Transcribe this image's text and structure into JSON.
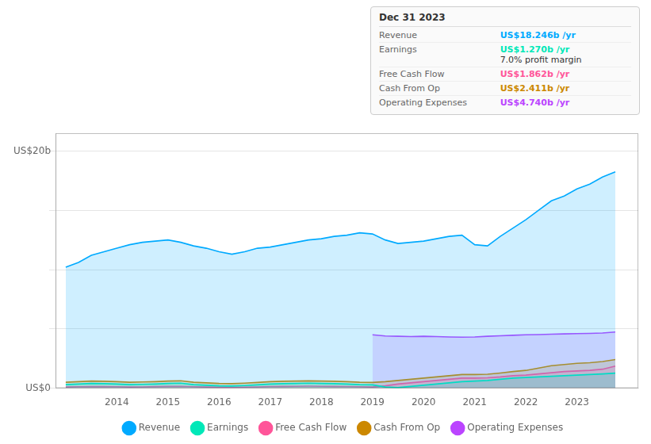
{
  "chart_data": {
    "type": "area",
    "x": [
      2013.0,
      2013.25,
      2013.5,
      2013.75,
      2014.0,
      2014.25,
      2014.5,
      2014.75,
      2015.0,
      2015.25,
      2015.5,
      2015.75,
      2016.0,
      2016.25,
      2016.5,
      2016.75,
      2017.0,
      2017.25,
      2017.5,
      2017.75,
      2018.0,
      2018.25,
      2018.5,
      2018.75,
      2019.0,
      2019.25,
      2019.5,
      2019.75,
      2020.0,
      2020.25,
      2020.5,
      2020.75,
      2021.0,
      2021.25,
      2021.5,
      2021.75,
      2022.0,
      2022.25,
      2022.5,
      2022.75,
      2023.0,
      2023.25,
      2023.5,
      2023.75
    ],
    "series": [
      {
        "name": "Revenue",
        "color": "#00aaff",
        "values": [
          10.2,
          10.6,
          11.2,
          11.5,
          11.8,
          12.1,
          12.3,
          12.4,
          12.5,
          12.3,
          12.0,
          11.8,
          11.5,
          11.3,
          11.5,
          11.8,
          11.9,
          12.1,
          12.3,
          12.5,
          12.6,
          12.8,
          12.9,
          13.1,
          13.0,
          12.5,
          12.2,
          12.3,
          12.4,
          12.6,
          12.8,
          12.9,
          12.1,
          12.0,
          12.8,
          13.5,
          14.2,
          15.0,
          15.8,
          16.2,
          16.8,
          17.2,
          17.8,
          18.246
        ]
      },
      {
        "name": "Earnings",
        "color": "#00e8b8",
        "values": [
          0.3,
          0.35,
          0.4,
          0.38,
          0.35,
          0.3,
          0.32,
          0.35,
          0.4,
          0.42,
          0.3,
          0.25,
          0.2,
          0.18,
          0.22,
          0.28,
          0.35,
          0.38,
          0.4,
          0.42,
          0.4,
          0.38,
          0.35,
          0.3,
          0.28,
          0.1,
          0.05,
          0.15,
          0.25,
          0.35,
          0.45,
          0.55,
          0.6,
          0.65,
          0.75,
          0.85,
          0.9,
          0.95,
          1.0,
          1.05,
          1.1,
          1.15,
          1.2,
          1.27
        ]
      },
      {
        "name": "Free Cash Flow",
        "color": "#ff5599",
        "values": [
          0.1,
          0.12,
          0.14,
          0.13,
          0.12,
          0.1,
          0.11,
          0.13,
          0.15,
          0.16,
          0.12,
          0.1,
          0.08,
          0.07,
          0.09,
          0.11,
          0.14,
          0.15,
          0.16,
          0.17,
          0.16,
          0.15,
          0.14,
          0.12,
          0.1,
          0.2,
          0.35,
          0.45,
          0.55,
          0.65,
          0.75,
          0.85,
          0.85,
          0.88,
          0.95,
          1.05,
          1.1,
          1.2,
          1.3,
          1.4,
          1.45,
          1.5,
          1.6,
          1.862
        ]
      },
      {
        "name": "Cash From Op",
        "color": "#cc8800",
        "values": [
          0.5,
          0.55,
          0.6,
          0.58,
          0.55,
          0.5,
          0.52,
          0.55,
          0.6,
          0.62,
          0.5,
          0.45,
          0.4,
          0.38,
          0.42,
          0.48,
          0.55,
          0.58,
          0.6,
          0.62,
          0.6,
          0.58,
          0.55,
          0.5,
          0.48,
          0.55,
          0.65,
          0.75,
          0.85,
          0.95,
          1.05,
          1.15,
          1.15,
          1.18,
          1.28,
          1.4,
          1.5,
          1.7,
          1.9,
          2.0,
          2.1,
          2.15,
          2.25,
          2.411
        ]
      },
      {
        "name": "Operating Expenses",
        "color": "#bb44ff",
        "values": [
          null,
          null,
          null,
          null,
          null,
          null,
          null,
          null,
          null,
          null,
          null,
          null,
          null,
          null,
          null,
          null,
          null,
          null,
          null,
          null,
          null,
          null,
          null,
          null,
          4.5,
          4.4,
          4.38,
          4.35,
          4.38,
          4.35,
          4.32,
          4.3,
          4.32,
          4.38,
          4.42,
          4.46,
          4.5,
          4.52,
          4.55,
          4.58,
          4.6,
          4.62,
          4.65,
          4.74
        ]
      }
    ],
    "xlim": [
      2012.8,
      2024.2
    ],
    "xticks": [
      2014,
      2015,
      2016,
      2017,
      2018,
      2019,
      2020,
      2021,
      2022,
      2023
    ],
    "ylim": [
      0,
      21.5
    ],
    "yticks": [
      0,
      5,
      10,
      15,
      20
    ],
    "grid": "y",
    "tick_labels": "x",
    "legend": "bottom",
    "annotations": [
      {
        "text": "US$20b",
        "y": 20
      },
      {
        "text": "US$0",
        "y": 0
      }
    ],
    "info_box": {
      "title": "Dec 31 2023",
      "rows": [
        {
          "label": "Revenue",
          "value": "US$18.246b /yr",
          "color": "#00aaff"
        },
        {
          "label": "Earnings",
          "value": "US$1.270b /yr",
          "color": "#00e8b8",
          "note": "7.0% profit margin"
        },
        {
          "label": "Free Cash Flow",
          "value": "US$1.862b /yr",
          "color": "#ff5599"
        },
        {
          "label": "Cash From Op",
          "value": "US$2.411b /yr",
          "color": "#cc8800"
        },
        {
          "label": "Operating Expenses",
          "value": "US$4.740b /yr",
          "color": "#bb44ff"
        }
      ]
    }
  }
}
